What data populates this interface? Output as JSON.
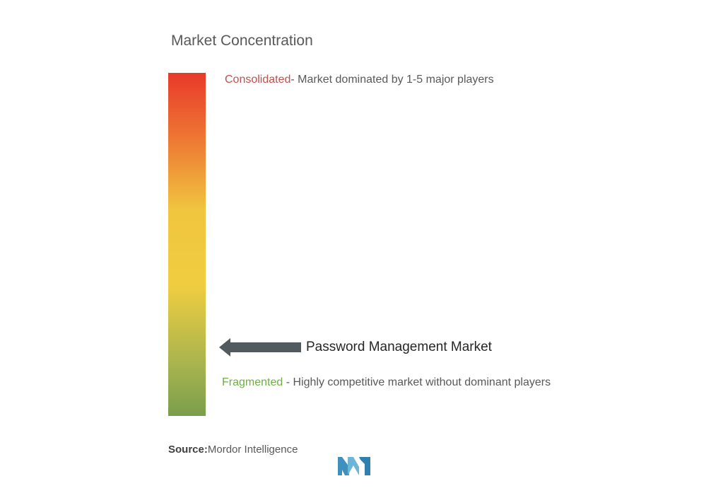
{
  "title": "Market Concentration",
  "consolidated": {
    "term": "Consolidated",
    "description": "- Market dominated by 1-5 major players"
  },
  "fragmented": {
    "term": "Fragmented",
    "description": " - Highly competitive market without dominant players"
  },
  "market_label": "Password Management Market",
  "source": {
    "label": "Source:",
    "value": "Mordor Intelligence"
  },
  "colors": {
    "consolidated": "#c0504d",
    "fragmented": "#70ad47",
    "arrow": "#505a5f",
    "logo": "#5aa0c8"
  },
  "icons": {
    "arrow": "left-arrow-icon",
    "logo": "mordor-intelligence-logo"
  }
}
